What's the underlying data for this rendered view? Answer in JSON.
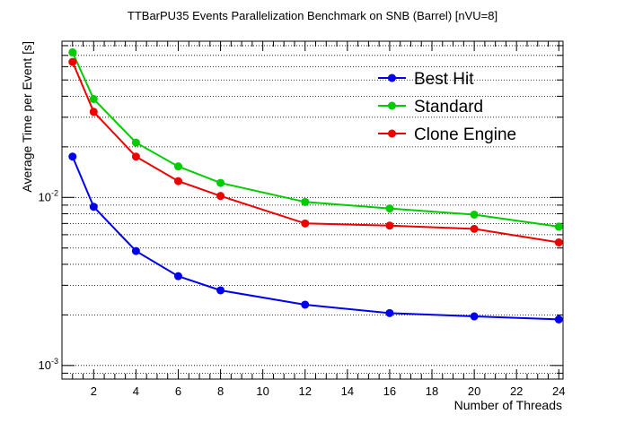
{
  "chart_data": {
    "type": "line",
    "title": "TTBarPU35 Events Parallelization Benchmark on SNB (Barrel) [nVU=8]",
    "xlabel": "Number of Threads",
    "ylabel": "Average Time per Event [s]",
    "xlim": [
      0.5,
      24.2
    ],
    "ylim": [
      0.00083,
      0.085
    ],
    "yscale": "log",
    "x_ticks": [
      2,
      4,
      6,
      8,
      10,
      12,
      14,
      16,
      18,
      20,
      22,
      24
    ],
    "y_tick_labels": [
      {
        "value": 0.001,
        "base": "10",
        "exp": "-3"
      },
      {
        "value": 0.01,
        "base": "10",
        "exp": "-2"
      }
    ],
    "grid": "y",
    "legend": "top-right",
    "x": [
      1,
      2,
      4,
      6,
      8,
      12,
      16,
      20,
      24
    ],
    "series": [
      {
        "name": "Best Hit",
        "color": "#0000ee",
        "values": [
          0.0175,
          0.0088,
          0.0048,
          0.0034,
          0.0028,
          0.0023,
          0.00205,
          0.00196,
          0.00188
        ]
      },
      {
        "name": "Standard",
        "color": "#00cc00",
        "values": [
          0.073,
          0.0385,
          0.0212,
          0.0153,
          0.0122,
          0.0094,
          0.0086,
          0.0079,
          0.0067
        ]
      },
      {
        "name": "Clone Engine",
        "color": "#ee0000",
        "values": [
          0.064,
          0.0323,
          0.0175,
          0.0125,
          0.0102,
          0.007,
          0.0068,
          0.0065,
          0.0054
        ]
      }
    ]
  }
}
